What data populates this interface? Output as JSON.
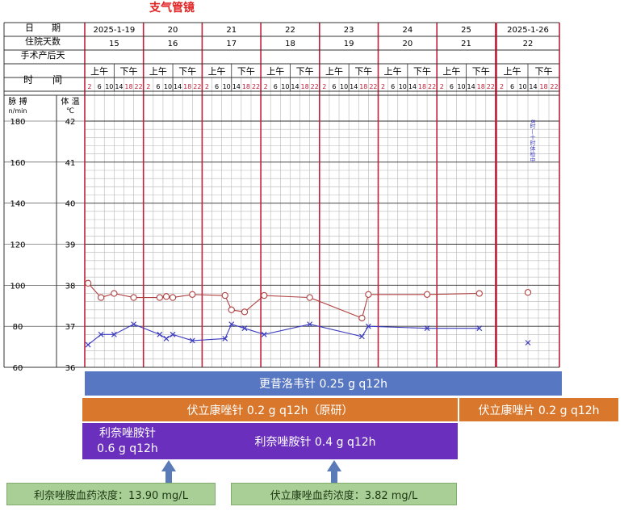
{
  "title": "支气管镜",
  "colors": {
    "title": "#e02020",
    "grid_red": "#c0203a",
    "grid_black": "#333333",
    "grid_light": "#b8b8b8",
    "pulse": "#b04040",
    "temperature": "#3a3ac0",
    "ganciclovir": "#5877c2",
    "voriconazole": "#d9782d",
    "linezolid": "#6a2fbd",
    "level_box": "#a9cf97",
    "arrow": "#5a7ab8"
  },
  "row_labels": {
    "date": "日　　期",
    "hospital_day": "住院天数",
    "post_op_day": "手术产后天",
    "time": "时　　间",
    "pulse_header": "脉 搏",
    "pulse_unit": "n/min",
    "temp_header": "体 温",
    "temp_unit": "℃"
  },
  "period_labels": {
    "am": "上午",
    "pm": "下午"
  },
  "hours": [
    "2",
    "6",
    "10",
    "14",
    "18",
    "22"
  ],
  "dates": [
    "2025-1-19",
    "20",
    "21",
    "22",
    "23",
    "24",
    "25",
    "2025-1-26"
  ],
  "hospital_days": [
    "15",
    "16",
    "17",
    "18",
    "19",
    "20",
    "21",
    "22"
  ],
  "pulse_ticks": [
    "180",
    "160",
    "140",
    "120",
    "100",
    "80",
    "60"
  ],
  "temp_ticks": [
    "42",
    "41",
    "40",
    "39",
    "38",
    "37",
    "36"
  ],
  "vertical_note": "8时—十时体检中",
  "drugs": {
    "ganciclovir": "更昔洛韦针 0.25 g q12h",
    "voriconazole_iv": "伏立康唑针 0.2 g q12h（原研）",
    "voriconazole_po": "伏立康唑片 0.2 g q12h",
    "linezolid_low_l1": "利奈唑胺针",
    "linezolid_low_l2": "0.6 g q12h",
    "linezolid_high": "利奈唑胺针 0.4 g q12h"
  },
  "levels": {
    "linezolid": "利奈唑胺血药浓度：13.90 mg/L",
    "voriconazole": "伏立康唑血药浓度：3.82 mg/L"
  },
  "chart_data": {
    "type": "line",
    "title": "支气管镜",
    "x_unit": "day index (0 = 2025-1-19 00:00), 4-hour slots",
    "y_left": {
      "label": "脉搏 n/min",
      "range": [
        60,
        180
      ]
    },
    "y_right": {
      "label": "体温 ℃",
      "range": [
        36,
        42
      ]
    },
    "series": [
      {
        "name": "脉搏",
        "marker": "circle",
        "axis": "left",
        "points": [
          [
            0.17,
            101
          ],
          [
            0.83,
            94
          ],
          [
            1.5,
            96
          ],
          [
            2.5,
            94
          ],
          [
            3.83,
            94
          ],
          [
            4.17,
            94.5
          ],
          [
            4.5,
            94
          ],
          [
            5.5,
            95.5
          ],
          [
            7.17,
            95
          ],
          [
            7.5,
            88
          ],
          [
            8.17,
            87
          ],
          [
            9.17,
            95
          ],
          [
            11.5,
            94
          ],
          [
            14.17,
            84
          ],
          [
            14.5,
            95.5
          ],
          [
            17.5,
            95.5
          ],
          [
            20.17,
            96
          ]
        ]
      },
      {
        "name": "体温",
        "marker": "x",
        "axis": "right",
        "points": [
          [
            0.17,
            36.55
          ],
          [
            0.83,
            36.8
          ],
          [
            1.5,
            36.8
          ],
          [
            2.5,
            37.05
          ],
          [
            3.83,
            36.8
          ],
          [
            4.17,
            36.7
          ],
          [
            4.5,
            36.8
          ],
          [
            5.5,
            36.65
          ],
          [
            7.17,
            36.7
          ],
          [
            7.5,
            37.05
          ],
          [
            8.17,
            36.95
          ],
          [
            9.17,
            36.8
          ],
          [
            11.5,
            37.05
          ],
          [
            14.17,
            36.75
          ],
          [
            14.5,
            37.0
          ],
          [
            17.5,
            36.95
          ],
          [
            20.17,
            36.95
          ]
        ]
      },
      {
        "name": "脉搏 2025-1-26",
        "marker": "circle",
        "axis": "left",
        "points": [
          [
            22.5,
            96.5
          ]
        ]
      },
      {
        "name": "体温 2025-1-26",
        "marker": "x",
        "axis": "right",
        "points": [
          [
            22.5,
            36.6
          ]
        ]
      }
    ]
  }
}
